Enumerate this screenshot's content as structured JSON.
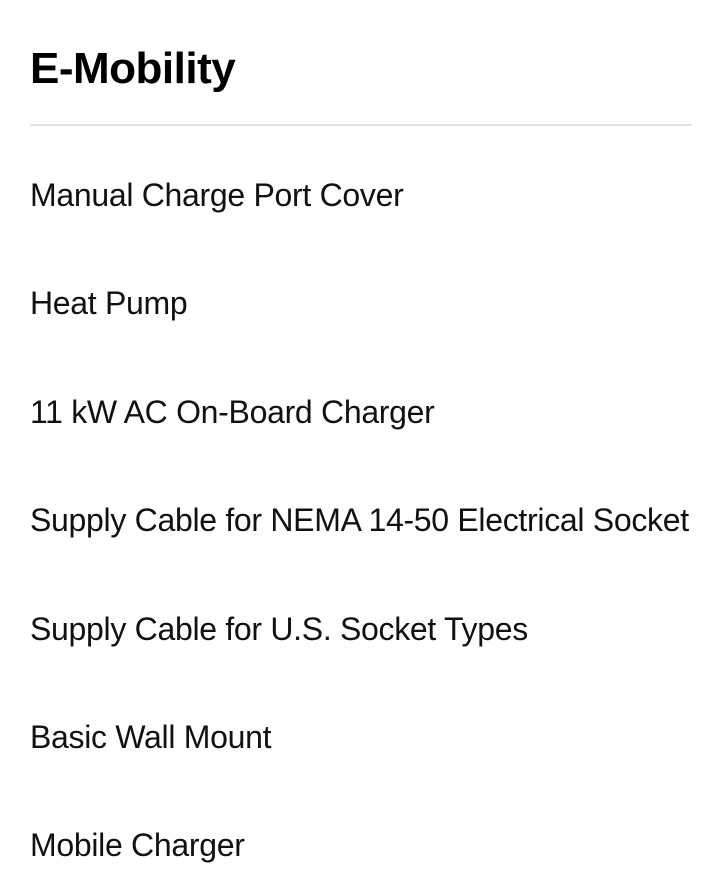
{
  "section": {
    "title": "E-Mobility",
    "title_fontsize": 44,
    "title_fontweight": 700,
    "title_color": "#000000",
    "divider_color": "#e2e2e2",
    "background_color": "#ffffff",
    "item_fontsize": 32,
    "item_fontweight": 400,
    "item_color": "#111111",
    "item_spacing": 70,
    "items": [
      {
        "label": "Manual Charge Port Cover"
      },
      {
        "label": "Heat Pump"
      },
      {
        "label": "11 kW AC On-Board Charger"
      },
      {
        "label": "Supply Cable for NEMA 14-50 Electrical Socket"
      },
      {
        "label": "Supply Cable for U.S. Socket Types"
      },
      {
        "label": "Basic Wall Mount"
      },
      {
        "label": "Mobile Charger"
      }
    ]
  }
}
